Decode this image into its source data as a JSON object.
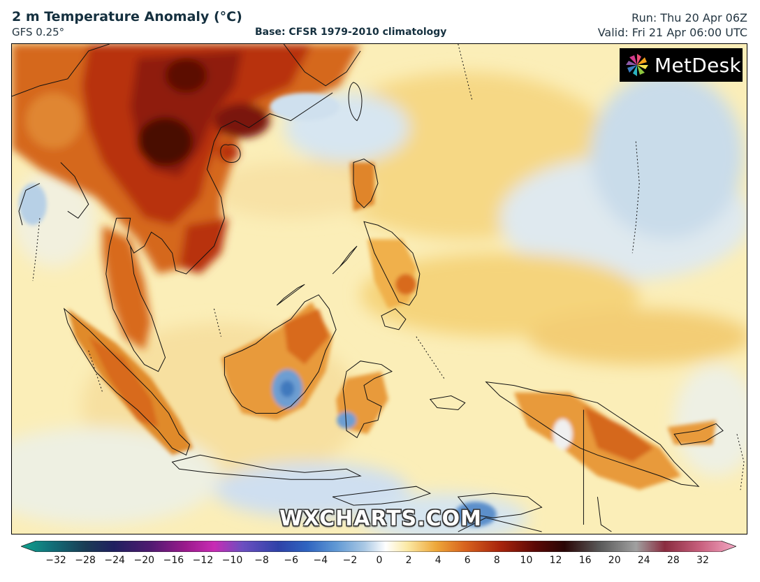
{
  "header": {
    "title": "2 m Temperature Anomaly (°C)",
    "model": "GFS 0.25°",
    "base": "Base: CFSR 1979-2010 climatology",
    "run": "Run: Thu 20 Apr 06Z",
    "valid": "Valid: Fri 21 Apr 06:00 UTC"
  },
  "logo": {
    "text": "MetDesk",
    "icon": "metdesk-pinwheel-icon"
  },
  "watermark": "WXCHARTS.COM",
  "colorbar": {
    "ticks": [
      "−32",
      "−28",
      "−24",
      "−20",
      "−16",
      "−12",
      "−10",
      "−8",
      "−6",
      "−4",
      "−2",
      "0",
      "2",
      "4",
      "6",
      "8",
      "10",
      "12",
      "16",
      "20",
      "24",
      "28",
      "32"
    ],
    "min_arrow_color": "#0fa898",
    "max_arrow_color": "#f4a8c4"
  },
  "colors": {
    "ocean_base": "#fbeeb8",
    "warm_light": "#f6d27a",
    "warm_mid": "#e89a3a",
    "warm_orange": "#d86a1e",
    "hot": "#b8320e",
    "very_hot": "#7a1208",
    "extreme": "#3a0806",
    "cool_light": "#dbe8f2",
    "cool_mid": "#b7d0e6",
    "cool_blue": "#5b8fcb",
    "coast": "#111111"
  }
}
